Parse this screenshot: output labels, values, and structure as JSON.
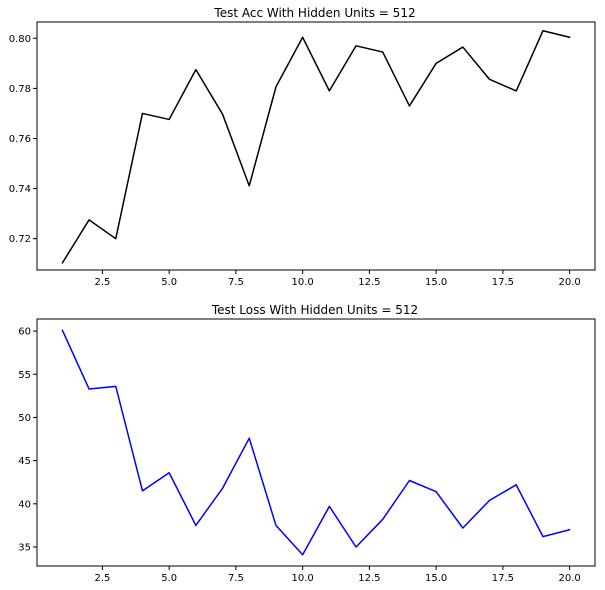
{
  "chart_data": [
    {
      "type": "line",
      "title": "Test Acc With Hidden Units = 512",
      "xlabel": "",
      "ylabel": "",
      "xlim": [
        0.05,
        20.95
      ],
      "ylim": [
        0.7075,
        0.8065
      ],
      "xticks": [
        2.5,
        5.0,
        7.5,
        10.0,
        12.5,
        15.0,
        17.5,
        20.0
      ],
      "xtick_labels": [
        "2.5",
        "5.0",
        "7.5",
        "10.0",
        "12.5",
        "15.0",
        "17.5",
        "20.0"
      ],
      "yticks": [
        0.72,
        0.74,
        0.76,
        0.78,
        0.8
      ],
      "ytick_labels": [
        "0.72",
        "0.74",
        "0.76",
        "0.78",
        "0.80"
      ],
      "grid": false,
      "legend": "none",
      "series": [
        {
          "color": "#000000",
          "x": [
            1,
            2,
            3,
            4,
            5,
            6,
            7,
            8,
            9,
            10,
            11,
            12,
            13,
            14,
            15,
            16,
            17,
            18,
            19,
            20
          ],
          "values": [
            0.7103,
            0.7275,
            0.72,
            0.77,
            0.7676,
            0.7875,
            0.7697,
            0.7411,
            0.7806,
            0.8004,
            0.779,
            0.797,
            0.7945,
            0.773,
            0.79,
            0.7965,
            0.7836,
            0.779,
            0.803,
            0.8004
          ]
        }
      ]
    },
    {
      "type": "line",
      "title": "Test Loss With Hidden Units = 512",
      "xlabel": "",
      "ylabel": "",
      "xlim": [
        0.05,
        20.95
      ],
      "ylim": [
        32.8,
        61.4
      ],
      "xticks": [
        2.5,
        5.0,
        7.5,
        10.0,
        12.5,
        15.0,
        17.5,
        20.0
      ],
      "xtick_labels": [
        "2.5",
        "5.0",
        "7.5",
        "10.0",
        "12.5",
        "15.0",
        "17.5",
        "20.0"
      ],
      "yticks": [
        35,
        40,
        45,
        50,
        55,
        60
      ],
      "ytick_labels": [
        "35",
        "40",
        "45",
        "50",
        "55",
        "60"
      ],
      "grid": false,
      "legend": "none",
      "series": [
        {
          "color": "#0000ff",
          "x": [
            1,
            2,
            3,
            4,
            5,
            6,
            7,
            8,
            9,
            10,
            11,
            12,
            13,
            14,
            15,
            16,
            17,
            18,
            19,
            20
          ],
          "values": [
            60.1,
            53.3,
            53.6,
            41.5,
            43.6,
            37.5,
            41.8,
            47.6,
            37.5,
            34.1,
            39.7,
            35.0,
            38.2,
            42.7,
            41.4,
            37.2,
            40.4,
            42.2,
            36.2,
            37.0
          ]
        }
      ]
    }
  ]
}
